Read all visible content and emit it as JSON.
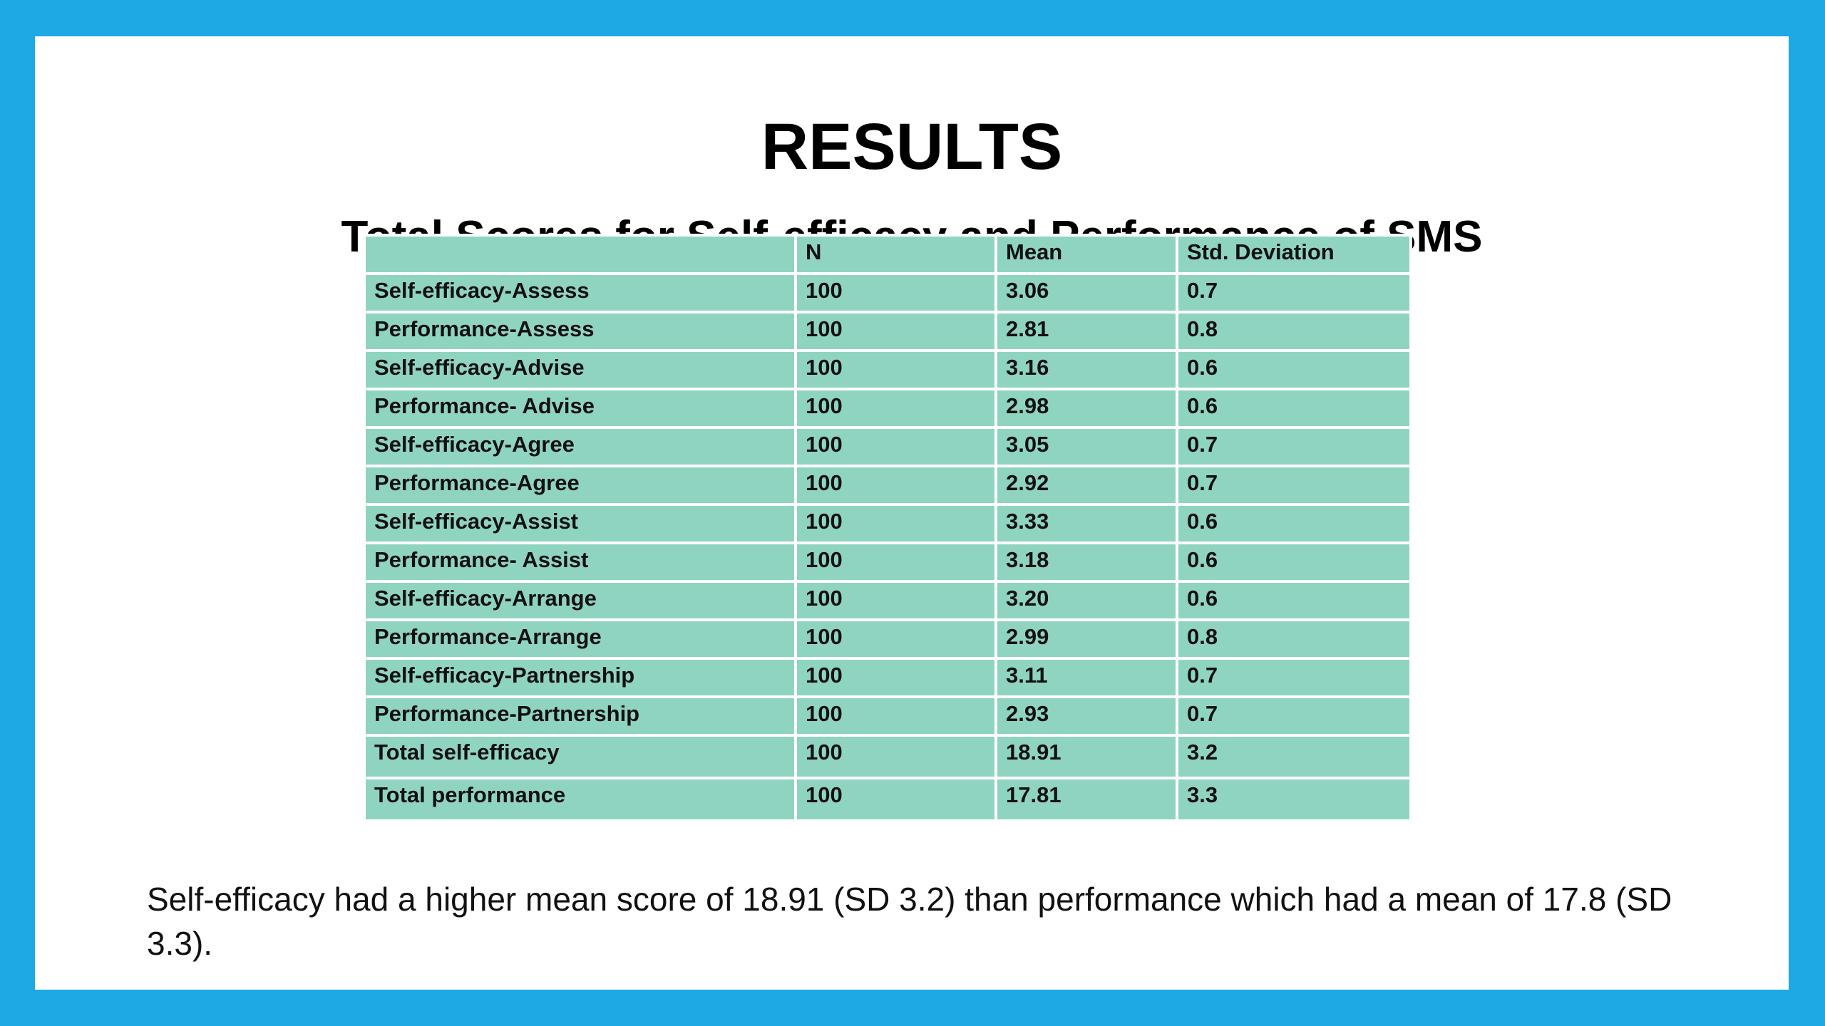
{
  "slide": {
    "title": "RESULTS",
    "subtitle": "Total Scores for Self-efficacy and Performance of SMS",
    "summary": "Self-efficacy had a higher mean score of 18.91 (SD 3.2) than performance which had a mean of 17.8 (SD 3.3).",
    "colors": {
      "frame": "#1ea9e4",
      "table_fill": "#8fd4c1",
      "background": "#ffffff"
    }
  },
  "table": {
    "headers": [
      "",
      "N",
      "Mean",
      "Std. Deviation"
    ],
    "rows": [
      [
        "Self-efficacy-Assess",
        "100",
        "3.06",
        "0.7"
      ],
      [
        "Performance-Assess",
        "100",
        "2.81",
        "0.8"
      ],
      [
        "Self-efficacy-Advise",
        "100",
        "3.16",
        "0.6"
      ],
      [
        "Performance- Advise",
        "100",
        "2.98",
        "0.6"
      ],
      [
        "Self-efficacy-Agree",
        "100",
        "3.05",
        "0.7"
      ],
      [
        "Performance-Agree",
        "100",
        "2.92",
        "0.7"
      ],
      [
        "Self-efficacy-Assist",
        "100",
        "3.33",
        "0.6"
      ],
      [
        "Performance- Assist",
        "100",
        "3.18",
        "0.6"
      ],
      [
        "Self-efficacy-Arrange",
        "100",
        "3.20",
        "0.6"
      ],
      [
        "Performance-Arrange",
        "100",
        "2.99",
        "0.8"
      ],
      [
        "Self-efficacy-Partnership",
        "100",
        "3.11",
        "0.7"
      ],
      [
        "Performance-Partnership",
        "100",
        "2.93",
        "0.7"
      ],
      [
        "Total self-efficacy",
        "100",
        "18.91",
        "3.2"
      ],
      [
        "Total performance",
        "100",
        "17.81",
        "3.3"
      ]
    ]
  }
}
